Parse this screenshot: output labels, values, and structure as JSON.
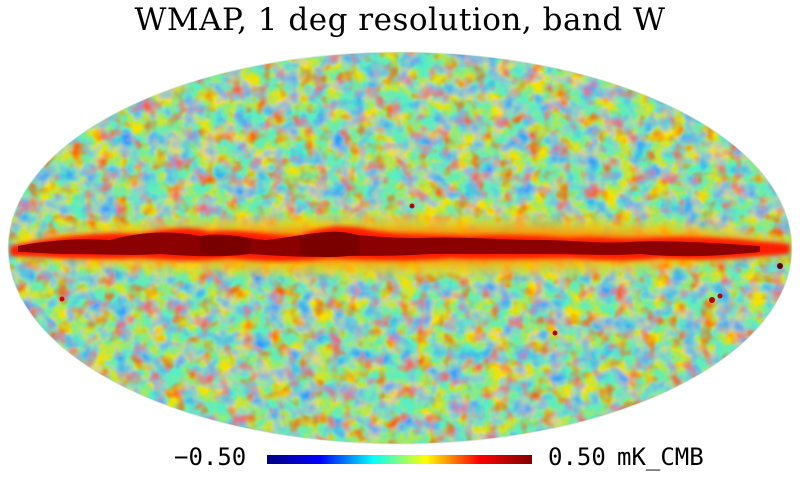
{
  "title": "WMAP, 1 deg resolution, band W",
  "colorbar": {
    "min_label": "−0.50",
    "max_label": "0.50",
    "unit": "mK_CMB",
    "min_value": -0.5,
    "max_value": 0.5,
    "colormap": "jet",
    "colors": [
      "#000080",
      "#0000ff",
      "#00ffff",
      "#ffff00",
      "#ff0000",
      "#800000"
    ]
  },
  "map": {
    "projection": "Mollweide",
    "coordinate_system": "Galactic",
    "features": [
      "galactic-plane-emission",
      "cmb-anisotropy"
    ]
  }
}
